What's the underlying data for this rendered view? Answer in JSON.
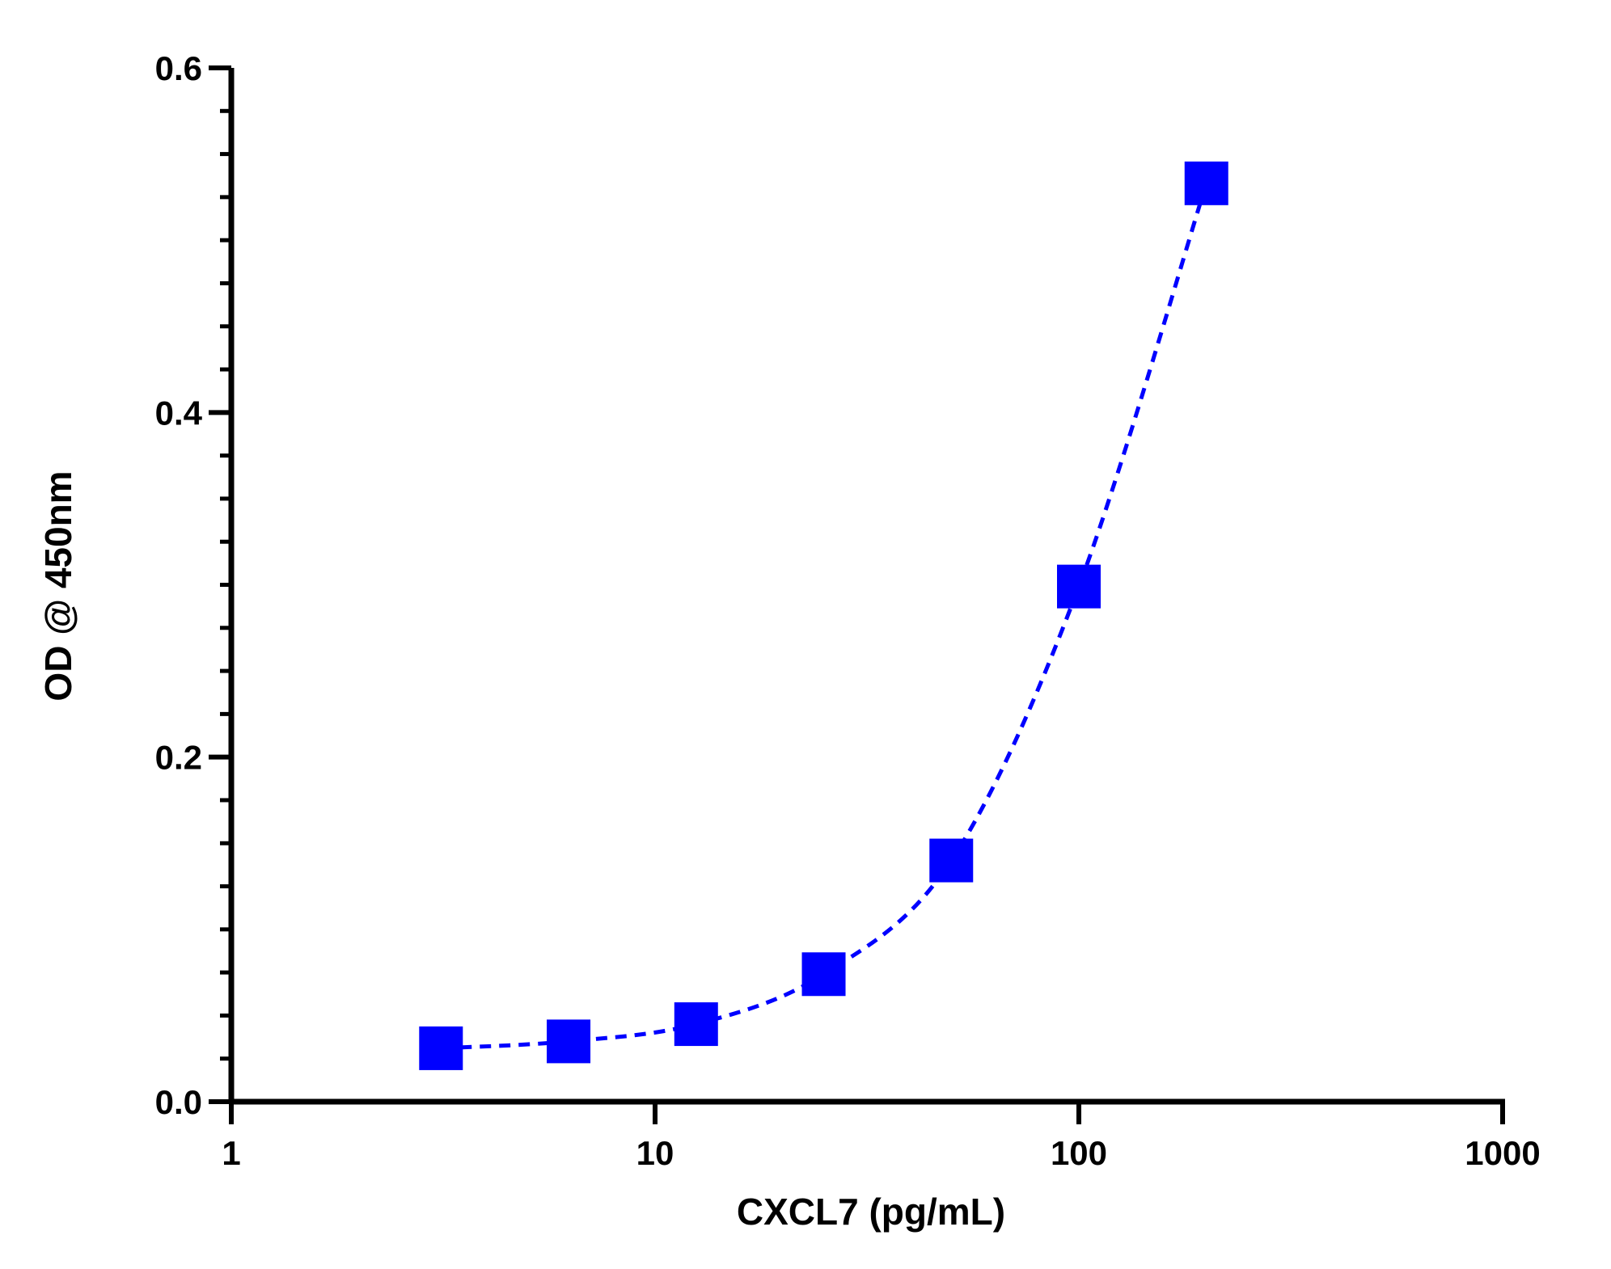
{
  "chart_data": {
    "type": "line",
    "title": "",
    "xlabel": "CXCL7 (pg/mL)",
    "ylabel": "OD @ 450nm",
    "x_scale": "log",
    "xlim": [
      1,
      1000
    ],
    "ylim": [
      0,
      0.6
    ],
    "x_ticks": [
      1,
      10,
      100,
      1000
    ],
    "x_tick_labels": [
      "1",
      "10",
      "100",
      "1000"
    ],
    "y_ticks": [
      0,
      0.2,
      0.4,
      0.6
    ],
    "y_tick_labels": [
      "0.0",
      "0.2",
      "0.4",
      "0.6"
    ],
    "grid": false,
    "legend": "none",
    "series": [
      {
        "x": [
          3.125,
          6.25,
          12.5,
          25,
          50,
          100,
          200
        ],
        "y": [
          0.031,
          0.035,
          0.045,
          0.074,
          0.14,
          0.299,
          0.533
        ],
        "color": "#0000ff",
        "marker": "square",
        "line_style": "dashed"
      }
    ]
  }
}
